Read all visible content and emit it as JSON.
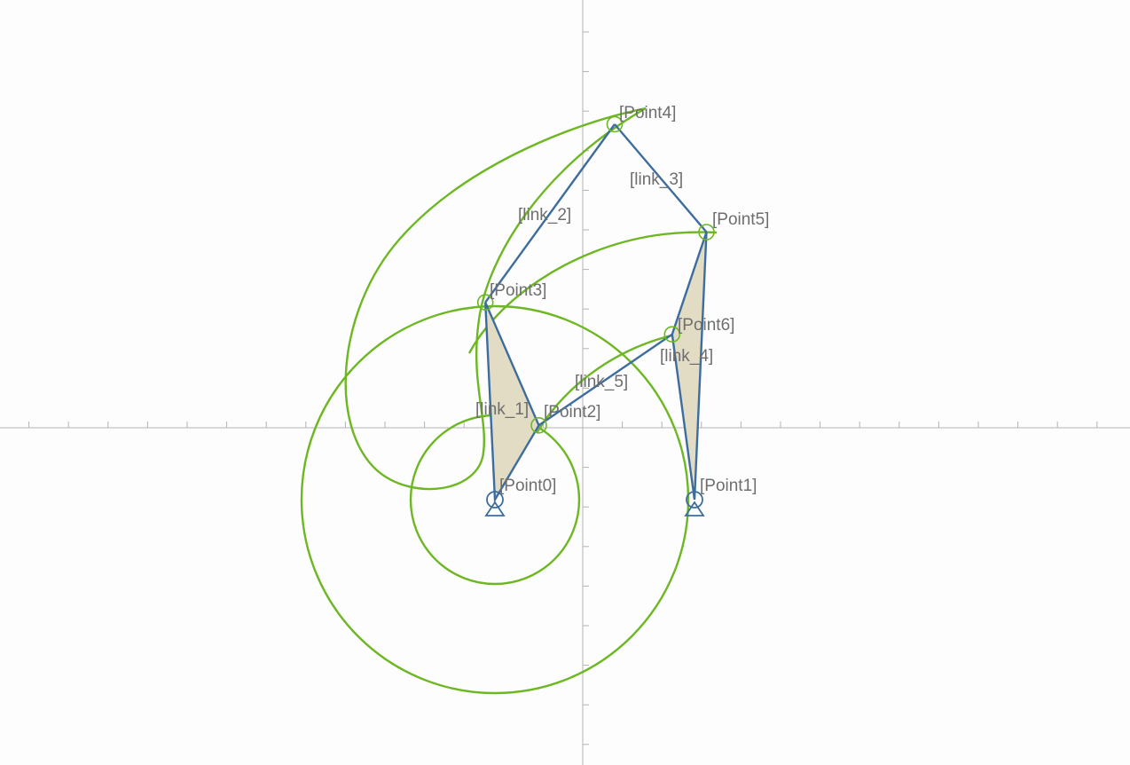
{
  "joints": [
    {
      "id": "p0",
      "label": "[Point0]",
      "x": -1.1,
      "y": -0.9,
      "ground": true
    },
    {
      "id": "p1",
      "label": "[Point1]",
      "x": 1.4,
      "y": -0.9,
      "ground": true
    },
    {
      "id": "p2",
      "label": "[Point2]",
      "x": -0.55,
      "y": 0.03
    },
    {
      "id": "p3",
      "label": "[Point3]",
      "x": -1.22,
      "y": 1.57
    },
    {
      "id": "p4",
      "label": "[Point4]",
      "x": 0.4,
      "y": 3.8
    },
    {
      "id": "p5",
      "label": "[Point5]",
      "x": 1.55,
      "y": 2.45
    },
    {
      "id": "p6",
      "label": "[Point6]",
      "x": 1.12,
      "y": 1.17
    }
  ],
  "links": [
    {
      "id": "link_1",
      "label": "[link_1]",
      "joints": [
        "p0",
        "p2",
        "p3"
      ],
      "shaded": true
    },
    {
      "id": "link_2",
      "label": "[link_2]",
      "joints": [
        "p3",
        "p4"
      ],
      "shaded": false
    },
    {
      "id": "link_3",
      "label": "[link_3]",
      "joints": [
        "p4",
        "p5"
      ],
      "shaded": false
    },
    {
      "id": "link_4",
      "label": "[link_4]",
      "joints": [
        "p1",
        "p6",
        "p5"
      ],
      "shaded": true
    },
    {
      "id": "link_5",
      "label": "[link_5]",
      "joints": [
        "p2",
        "p6"
      ],
      "shaded": false
    }
  ],
  "colors": {
    "path_curve": "#6cb722",
    "link": "#3c6d9e",
    "link_fill": "#e3dcc4",
    "label": "#6e6e6e",
    "axis": "#b3b3b3"
  }
}
